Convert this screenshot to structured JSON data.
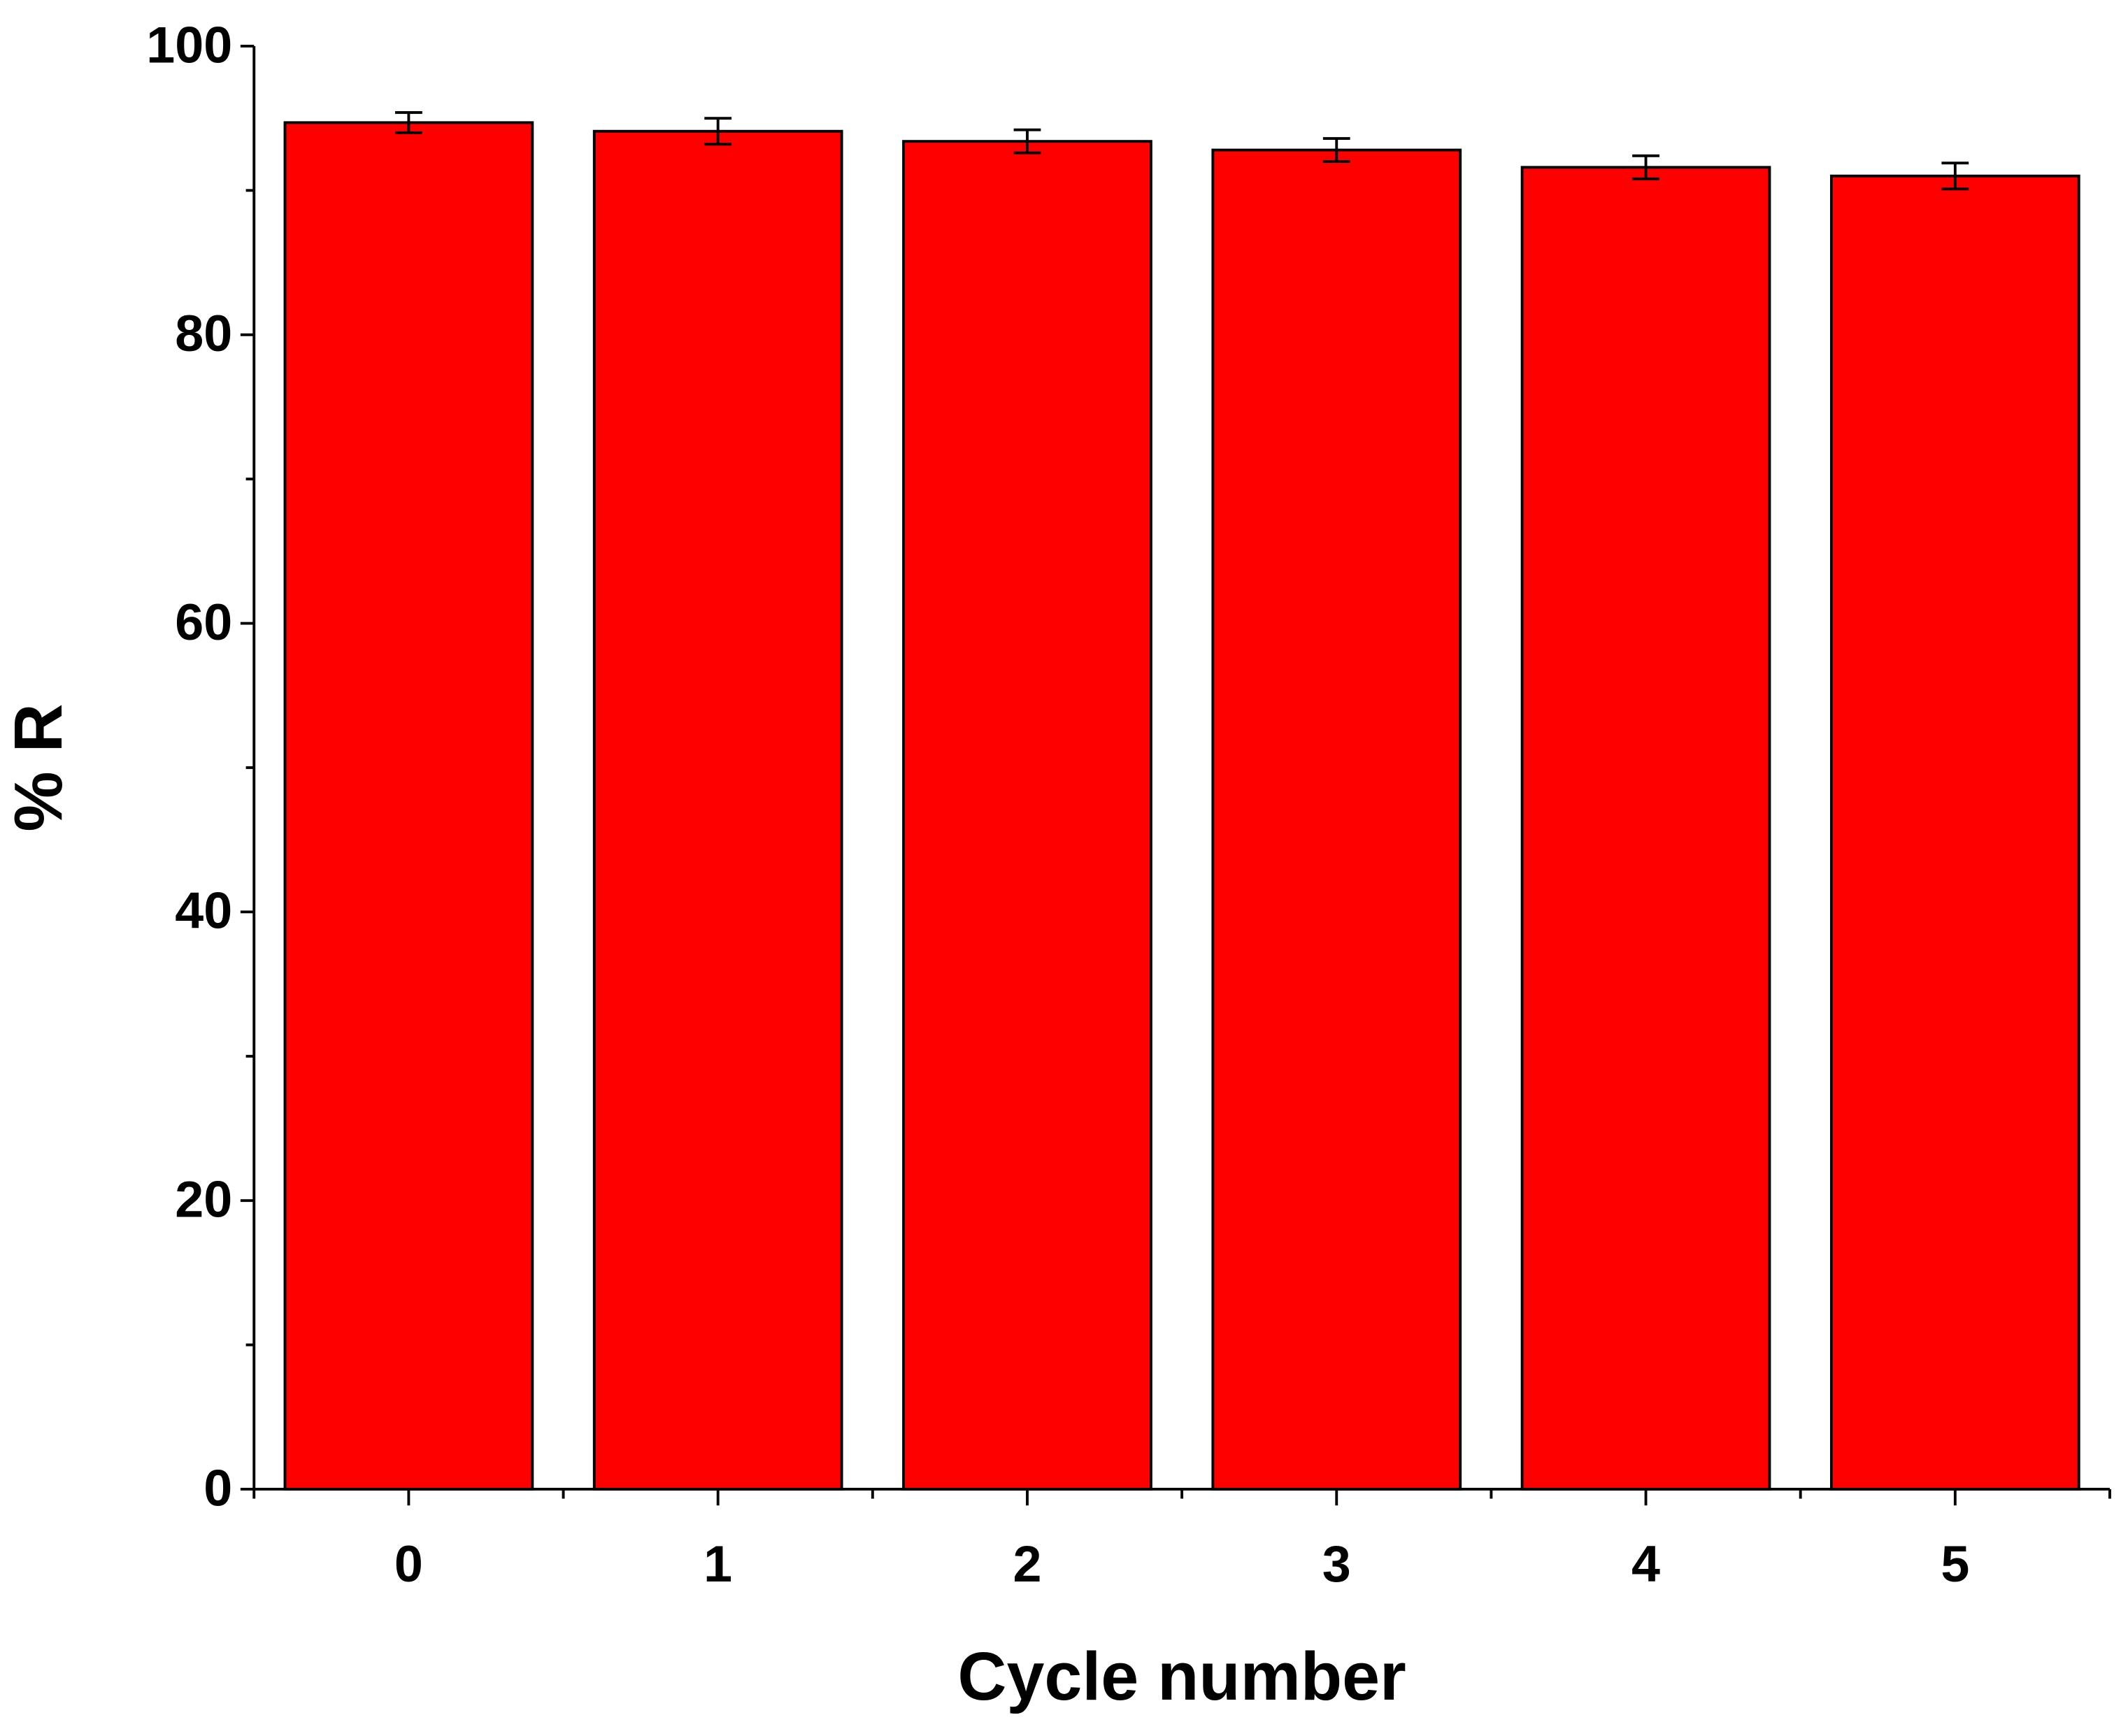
{
  "chart_data": {
    "type": "bar",
    "x_label": "Cycle number",
    "y_label": "% R",
    "x": [
      0,
      1,
      2,
      3,
      4,
      5
    ],
    "values": [
      94.7,
      94.1,
      93.4,
      92.8,
      91.6,
      91.0
    ],
    "errors": [
      0.7,
      0.9,
      0.8,
      0.8,
      0.8,
      0.9
    ],
    "color": "#ff0000",
    "xlim": [
      -0.5,
      5.5
    ],
    "ylim": [
      0,
      100
    ],
    "yticks": [
      0,
      20,
      40,
      60,
      80,
      100
    ]
  }
}
